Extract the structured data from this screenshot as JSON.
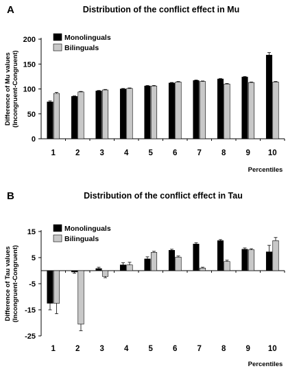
{
  "chart_data": [
    {
      "panel": "A",
      "type": "bar",
      "title": "Distribution of the conflict effect in Mu",
      "ylabel_line1": "Difference of Mu values",
      "ylabel_line2": "(Incongruent-Congruent)",
      "xlabel": "Percentiles",
      "categories": [
        "1",
        "2",
        "3",
        "4",
        "5",
        "6",
        "7",
        "8",
        "9",
        "10"
      ],
      "ylim": [
        0,
        200
      ],
      "yticks": [
        "0",
        "50",
        "100",
        "150",
        "200"
      ],
      "ytick_values": [
        0,
        50,
        100,
        150,
        200
      ],
      "legend": "top-left",
      "series": [
        {
          "name": "Monolinguals",
          "color": "#000000",
          "values": [
            74,
            85,
            96,
            100,
            106,
            112,
            117,
            120,
            124,
            168
          ],
          "errors": [
            2,
            1,
            1,
            1,
            1,
            1,
            1,
            1,
            1,
            5
          ]
        },
        {
          "name": "Bilinguals",
          "color": "#c8c8c8",
          "values": [
            91,
            94,
            98,
            101,
            106,
            114,
            115,
            110,
            113,
            114
          ],
          "errors": [
            2,
            1,
            1,
            1,
            1,
            1,
            1,
            1,
            1,
            1
          ]
        }
      ]
    },
    {
      "panel": "B",
      "type": "bar",
      "title": "Distribution of the conflict effect in Tau",
      "ylabel_line1": "Difference of Tau values",
      "ylabel_line2": "(Incongruent-Congruent)",
      "xlabel": "Percentiles",
      "categories": [
        "1",
        "2",
        "3",
        "4",
        "5",
        "6",
        "7",
        "8",
        "9",
        "10"
      ],
      "ylim": [
        -25,
        15
      ],
      "yticks": [
        "-25",
        "-15",
        "-5",
        "5",
        "15"
      ],
      "ytick_values": [
        -25,
        -15,
        -5,
        5,
        15
      ],
      "legend": "top-left",
      "series": [
        {
          "name": "Monolinguals",
          "color": "#000000",
          "values": [
            -12.5,
            -0.5,
            0.8,
            2.2,
            4.5,
            7.8,
            10.2,
            11.5,
            8.2,
            7.2
          ],
          "errors": [
            2.5,
            0.5,
            0.5,
            0.8,
            0.8,
            0.4,
            0.5,
            0.4,
            0.5,
            2.5
          ]
        },
        {
          "name": "Bilinguals",
          "color": "#c8c8c8",
          "values": [
            -12.5,
            -20.5,
            -2.2,
            2.2,
            7.0,
            5.2,
            1.0,
            3.5,
            8.0,
            11.5
          ],
          "errors": [
            4.0,
            2.5,
            0.5,
            1.0,
            0.4,
            0.4,
            0.3,
            0.5,
            0.4,
            1.2
          ]
        }
      ]
    }
  ]
}
